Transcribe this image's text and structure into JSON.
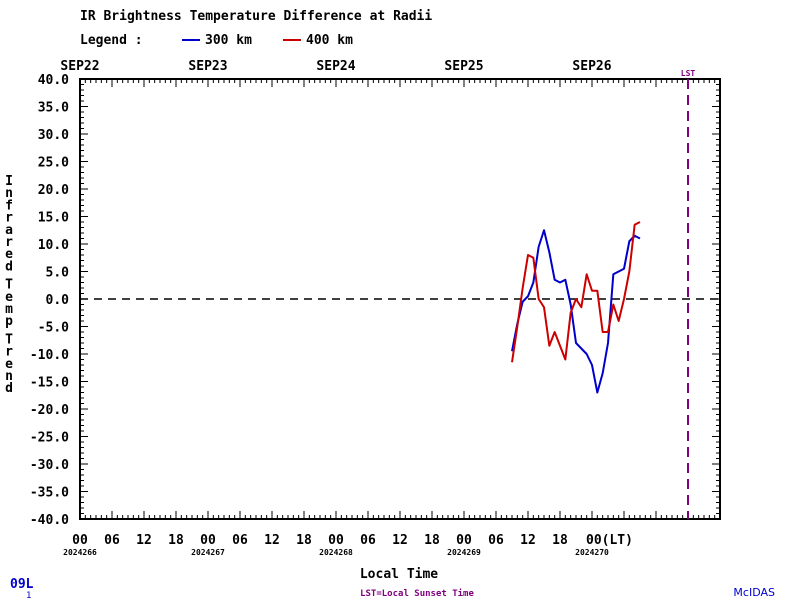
{
  "chart_data": {
    "type": "line",
    "title": "IR Brightness Temperature Difference at Radii",
    "legend_label": "Legend :",
    "legend_position": "top-left",
    "ylabel": "Infrared Temp Trend",
    "xlabel": "Local Time",
    "ylim": [
      -40,
      40
    ],
    "y_ticks": [
      "40.0",
      "35.0",
      "30.0",
      "25.0",
      "20.0",
      "15.0",
      "10.0",
      "5.0",
      "0.0",
      "-5.0",
      "-10.0",
      "-15.0",
      "-20.0",
      "-25.0",
      "-30.0",
      "-35.0",
      "-40.0"
    ],
    "xlim_hours": [
      0,
      120
    ],
    "x_tick_labels": [
      "00",
      "06",
      "12",
      "18",
      "00",
      "06",
      "12",
      "18",
      "00",
      "06",
      "12",
      "18",
      "00",
      "06",
      "12",
      "18",
      "00(LT)"
    ],
    "date_labels_top": [
      "SEP22",
      "SEP23",
      "SEP24",
      "SEP25",
      "SEP26"
    ],
    "julian_labels": [
      "2024266",
      "2024267",
      "2024268",
      "2024269",
      "2024270"
    ],
    "zero_line": 0,
    "sunset_marker": {
      "label": "LST",
      "hour": 114,
      "color": "#800080"
    },
    "series": [
      {
        "name": "300 km",
        "color": "#0000cc",
        "x": [
          81,
          82,
          83,
          84,
          85,
          86,
          87,
          88,
          89,
          90,
          91,
          92,
          93,
          94,
          95,
          96,
          97,
          98,
          99,
          100,
          101,
          102,
          103,
          104,
          105,
          106,
          107,
          108,
          109,
          110,
          111
        ],
        "y": [
          -9.5,
          -4.5,
          -0.5,
          0.5,
          3,
          9.5,
          12.5,
          8.5,
          3.5,
          3,
          3.5,
          -1,
          -8,
          -9,
          -10,
          -12,
          -17,
          -13.5,
          -8,
          4.5,
          5,
          5.5,
          10.5,
          11.5,
          11,
          null,
          null,
          null,
          null,
          null,
          null
        ]
      },
      {
        "name": "400 km",
        "color": "#cc0000",
        "x": [
          81,
          82,
          83,
          84,
          85,
          86,
          87,
          88,
          89,
          90,
          91,
          92,
          93,
          94,
          95,
          96,
          97,
          98,
          99,
          100,
          101,
          102,
          103,
          104,
          105,
          106,
          107
        ],
        "y": [
          -11.5,
          -5,
          2,
          8,
          7.5,
          0,
          -1.5,
          -8.5,
          -6,
          -8.5,
          -11,
          -2.5,
          0,
          -1.5,
          4.5,
          1.5,
          1.5,
          -6,
          -6,
          -1,
          -4,
          0,
          5,
          13.5,
          14,
          null,
          null
        ]
      }
    ]
  },
  "footer": {
    "storm_id": "09L",
    "storm_sub": "1",
    "lst_note": "LST=Local Sunset Time",
    "brand": "McIDAS"
  }
}
